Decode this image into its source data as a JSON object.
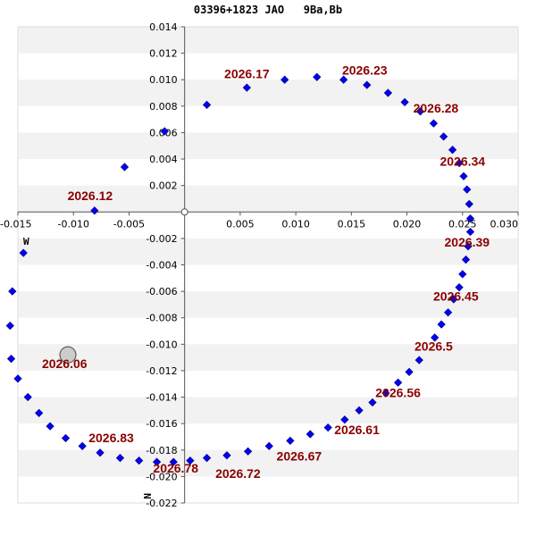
{
  "header": {
    "title": "03396+1823 JAO   9Ba,Bb"
  },
  "direction_labels": {
    "west": "W",
    "north": "N"
  },
  "colors": {
    "points": "#0000ee",
    "labels": "#8b0000",
    "band": "#f2f2f2",
    "primary": "#cccccc"
  },
  "chart_data": {
    "type": "scatter",
    "title": "03396+1823 JAO   9Ba,Bb",
    "xlabel": "",
    "ylabel": "",
    "xlim": [
      -0.015,
      0.03
    ],
    "ylim": [
      -0.022,
      0.014
    ],
    "x_ticks": [
      -0.015,
      -0.01,
      -0.005,
      0.005,
      0.01,
      0.015,
      0.02,
      0.025,
      0.03
    ],
    "x_tick_labels": [
      "-0.015",
      "-0.010",
      "-0.005",
      "0.005",
      "0.010",
      "0.015",
      "0.020",
      "0.025",
      "0.030"
    ],
    "y_ticks": [
      0.014,
      0.012,
      0.01,
      0.008,
      0.006,
      0.004,
      0.002,
      -0.002,
      -0.004,
      -0.006,
      -0.008,
      -0.01,
      -0.012,
      -0.014,
      -0.016,
      -0.018,
      -0.02,
      -0.022
    ],
    "y_tick_labels": [
      "0.014",
      "0.012",
      "0.010",
      "0.008",
      "0.006",
      "0.004",
      "0.002",
      "-0.002",
      "-0.004",
      "-0.006",
      "-0.008",
      "-0.010",
      "-0.012",
      "-0.014",
      "-0.016",
      "-0.018",
      "-0.020",
      "-0.022"
    ],
    "primary": {
      "x": 0,
      "y": 0
    },
    "companion_current": {
      "x": -0.0105,
      "y": -0.0108
    },
    "points": [
      [
        -0.0081,
        0.0001
      ],
      [
        -0.0054,
        0.0034
      ],
      [
        -0.0018,
        0.0061
      ],
      [
        0.002,
        0.0081
      ],
      [
        0.0056,
        0.0094
      ],
      [
        0.009,
        0.01
      ],
      [
        0.0119,
        0.0102
      ],
      [
        0.0143,
        0.01
      ],
      [
        0.0164,
        0.0096
      ],
      [
        0.0183,
        0.009
      ],
      [
        0.0198,
        0.0083
      ],
      [
        0.0212,
        0.0076
      ],
      [
        0.0224,
        0.0067
      ],
      [
        0.0233,
        0.0057
      ],
      [
        0.0241,
        0.0047
      ],
      [
        0.0247,
        0.0037
      ],
      [
        0.0251,
        0.0027
      ],
      [
        0.0254,
        0.0017
      ],
      [
        0.0256,
        0.0006
      ],
      [
        0.0257,
        -0.0005
      ],
      [
        0.0257,
        -0.0015
      ],
      [
        0.0255,
        -0.0026
      ],
      [
        0.0253,
        -0.0036
      ],
      [
        0.025,
        -0.0047
      ],
      [
        0.0247,
        -0.0057
      ],
      [
        0.0242,
        -0.0066
      ],
      [
        0.0237,
        -0.0076
      ],
      [
        0.0231,
        -0.0085
      ],
      [
        0.0225,
        -0.0095
      ],
      [
        0.0211,
        -0.0112
      ],
      [
        0.0202,
        -0.0121
      ],
      [
        0.0192,
        -0.0129
      ],
      [
        0.0181,
        -0.0137
      ],
      [
        0.0169,
        -0.0144
      ],
      [
        0.0157,
        -0.015
      ],
      [
        0.0144,
        -0.0157
      ],
      [
        0.0129,
        -0.0163
      ],
      [
        0.0113,
        -0.0168
      ],
      [
        0.0095,
        -0.0173
      ],
      [
        0.0076,
        -0.0177
      ],
      [
        0.0057,
        -0.0181
      ],
      [
        0.0038,
        -0.0184
      ],
      [
        0.002,
        -0.0186
      ],
      [
        0.0005,
        -0.0188
      ],
      [
        -0.001,
        -0.0189
      ],
      [
        -0.0025,
        -0.0189
      ],
      [
        -0.0041,
        -0.0188
      ],
      [
        -0.0058,
        -0.0186
      ],
      [
        -0.0076,
        -0.0182
      ],
      [
        -0.0092,
        -0.0177
      ],
      [
        -0.0107,
        -0.0171
      ],
      [
        -0.0121,
        -0.0162
      ],
      [
        -0.0131,
        -0.0152
      ],
      [
        -0.0141,
        -0.014
      ],
      [
        -0.015,
        -0.0126
      ],
      [
        -0.0156,
        -0.0111
      ],
      [
        -0.0157,
        -0.0086
      ],
      [
        -0.0155,
        -0.006
      ],
      [
        -0.0145,
        -0.0031
      ]
    ],
    "epoch_labels": [
      {
        "text": "2026.06",
        "x": -0.0108,
        "y": -0.0118
      },
      {
        "text": "2026.12",
        "x": -0.0085,
        "y": 0.0009
      },
      {
        "text": "2026.17",
        "x": 0.0056,
        "y": 0.0101
      },
      {
        "text": "2026.23",
        "x": 0.0162,
        "y": 0.0104
      },
      {
        "text": "2026.28",
        "x": 0.0226,
        "y": 0.0075
      },
      {
        "text": "2026.34",
        "x": 0.025,
        "y": 0.0035
      },
      {
        "text": "2026.39",
        "x": 0.0254,
        "y": -0.0026
      },
      {
        "text": "2026.45",
        "x": 0.0244,
        "y": -0.0067
      },
      {
        "text": "2026.5",
        "x": 0.0224,
        "y": -0.0105
      },
      {
        "text": "2026.56",
        "x": 0.0192,
        "y": -0.014
      },
      {
        "text": "2026.61",
        "x": 0.0155,
        "y": -0.0168
      },
      {
        "text": "2026.67",
        "x": 0.0103,
        "y": -0.0188
      },
      {
        "text": "2026.72",
        "x": 0.0048,
        "y": -0.0201
      },
      {
        "text": "2026.78",
        "x": -0.0008,
        "y": -0.0197
      },
      {
        "text": "2026.83",
        "x": -0.0066,
        "y": -0.0174
      }
    ]
  }
}
